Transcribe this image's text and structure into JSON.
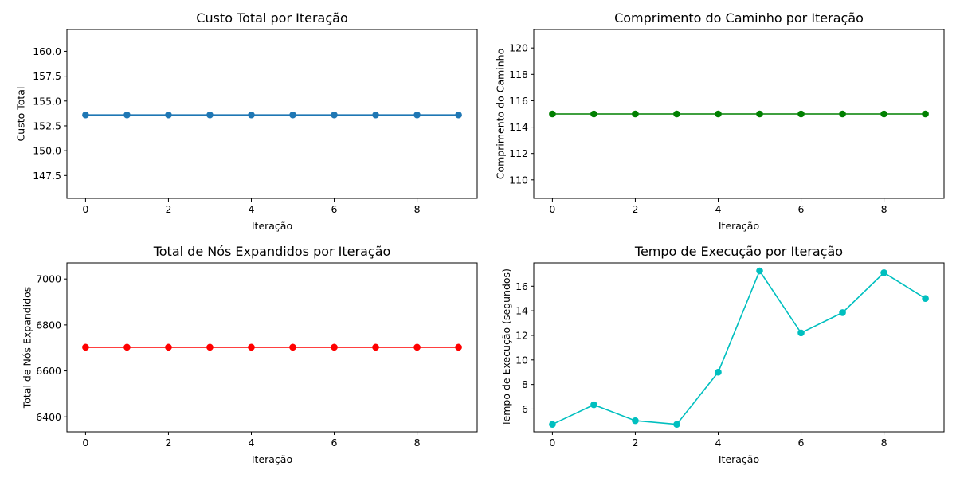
{
  "chart_data": [
    {
      "type": "line",
      "title": "Custo Total por Iteração",
      "xlabel": "Iteração",
      "ylabel": "Custo Total",
      "xlim": [
        -0.45,
        9.45
      ],
      "ylim": [
        145.2,
        162.2
      ],
      "x_ticks": [
        0,
        2,
        4,
        6,
        8
      ],
      "y_ticks": [
        147.5,
        150.0,
        152.5,
        155.0,
        157.5,
        160.0
      ],
      "series": [
        {
          "color": "#1f77b4",
          "x": [
            0,
            1,
            2,
            3,
            4,
            5,
            6,
            7,
            8,
            9
          ],
          "values": [
            153.6,
            153.6,
            153.6,
            153.6,
            153.6,
            153.6,
            153.6,
            153.6,
            153.6,
            153.6
          ]
        }
      ]
    },
    {
      "type": "line",
      "title": "Comprimento do Caminho por Iteração",
      "xlabel": "Iteração",
      "ylabel": "Comprimento do Caminho",
      "xlim": [
        -0.45,
        9.45
      ],
      "ylim": [
        108.6,
        121.4
      ],
      "x_ticks": [
        0,
        2,
        4,
        6,
        8
      ],
      "y_ticks": [
        110,
        112,
        114,
        116,
        118,
        120
      ],
      "series": [
        {
          "color": "#008000",
          "x": [
            0,
            1,
            2,
            3,
            4,
            5,
            6,
            7,
            8,
            9
          ],
          "values": [
            115,
            115,
            115,
            115,
            115,
            115,
            115,
            115,
            115,
            115
          ]
        }
      ]
    },
    {
      "type": "line",
      "title": "Total de Nós Expandidos por Iteração",
      "xlabel": "Iteração",
      "ylabel": "Total de Nós Expandidos",
      "xlim": [
        -0.45,
        9.45
      ],
      "ylim": [
        6335,
        7070
      ],
      "x_ticks": [
        0,
        2,
        4,
        6,
        8
      ],
      "y_ticks": [
        6400,
        6600,
        6800,
        7000
      ],
      "series": [
        {
          "color": "#ff0000",
          "x": [
            0,
            1,
            2,
            3,
            4,
            5,
            6,
            7,
            8,
            9
          ],
          "values": [
            6703,
            6703,
            6703,
            6703,
            6703,
            6703,
            6703,
            6703,
            6703,
            6703
          ]
        }
      ]
    },
    {
      "type": "line",
      "title": "Tempo de Execução por Iteração",
      "xlabel": "Iteração",
      "ylabel": "Tempo de Execução (segundos)",
      "xlim": [
        -0.45,
        9.45
      ],
      "ylim": [
        4.15,
        17.9
      ],
      "x_ticks": [
        0,
        2,
        4,
        6,
        8
      ],
      "y_ticks": [
        6,
        8,
        10,
        12,
        14,
        16
      ],
      "series": [
        {
          "color": "#00bfbf",
          "x": [
            0,
            1,
            2,
            3,
            4,
            5,
            6,
            7,
            8,
            9
          ],
          "values": [
            4.75,
            6.35,
            5.05,
            4.75,
            9.0,
            17.25,
            12.2,
            13.85,
            17.1,
            15.0
          ]
        }
      ]
    }
  ]
}
